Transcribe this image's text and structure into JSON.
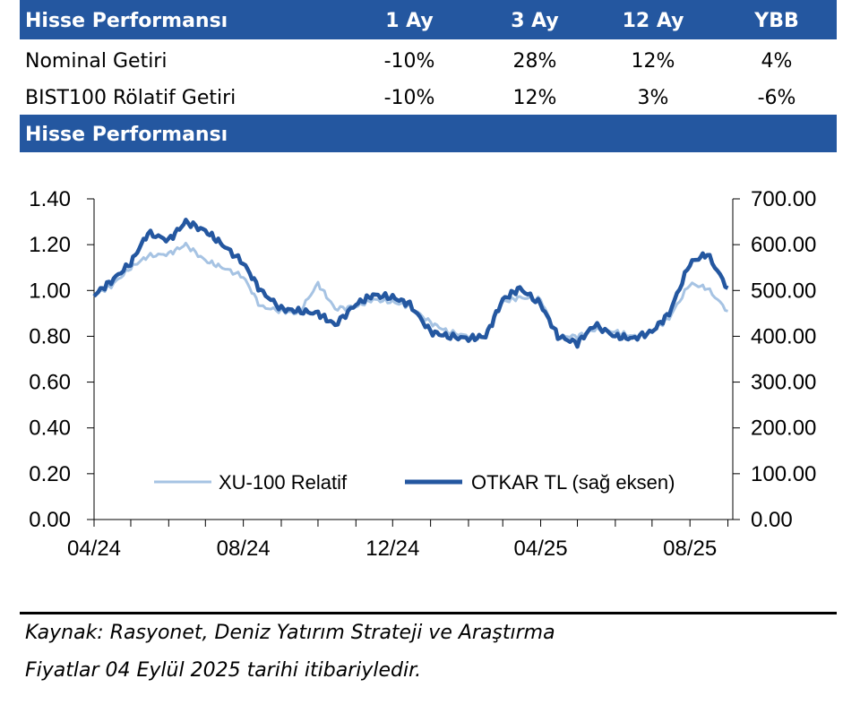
{
  "table": {
    "header": [
      "Hisse Performansı",
      "1 Ay",
      "3 Ay",
      "12 Ay",
      "YBB"
    ],
    "rows": [
      [
        "Nominal Getiri",
        "-10%",
        "28%",
        "12%",
        "4%"
      ],
      [
        "BIST100 Rölatif Getiri",
        "-10%",
        "12%",
        "3%",
        "-6%"
      ]
    ]
  },
  "section_title": "Hisse Performansı",
  "chart_data": {
    "type": "line",
    "left_axis": {
      "ylim": [
        0,
        1.4
      ],
      "ticks": [
        "0.00",
        "0.20",
        "0.40",
        "0.60",
        "0.80",
        "1.00",
        "1.20",
        "1.40"
      ]
    },
    "right_axis": {
      "ylim": [
        0,
        700
      ],
      "ticks": [
        "0.00",
        "100.00",
        "200.00",
        "300.00",
        "400.00",
        "500.00",
        "600.00",
        "700.00"
      ]
    },
    "x_ticks": [
      "04/24",
      "08/24",
      "12/24",
      "04/25",
      "08/25"
    ],
    "x_range": [
      "2024-04",
      "2025-09"
    ],
    "grid": false,
    "legend_position": "bottom-right",
    "series": [
      {
        "name": "XU-100 Relatif",
        "axis": "left",
        "color": "#a6c3e3",
        "x": [
          "2024-04-01",
          "2024-04-15",
          "2024-05-01",
          "2024-05-15",
          "2024-06-01",
          "2024-06-15",
          "2024-07-01",
          "2024-07-15",
          "2024-08-01",
          "2024-08-15",
          "2024-09-01",
          "2024-09-15",
          "2024-10-01",
          "2024-10-15",
          "2024-11-01",
          "2024-11-15",
          "2024-12-01",
          "2024-12-15",
          "2025-01-01",
          "2025-01-15",
          "2025-02-01",
          "2025-02-15",
          "2025-03-01",
          "2025-03-15",
          "2025-04-01",
          "2025-04-15",
          "2025-05-01",
          "2025-05-15",
          "2025-06-01",
          "2025-06-15",
          "2025-07-01",
          "2025-07-15",
          "2025-08-01",
          "2025-08-15",
          "2025-09-01"
        ],
        "values": [
          0.98,
          1.02,
          1.1,
          1.15,
          1.16,
          1.2,
          1.13,
          1.1,
          1.06,
          0.93,
          0.91,
          0.9,
          1.03,
          0.92,
          0.93,
          0.96,
          0.95,
          0.93,
          0.86,
          0.82,
          0.8,
          0.8,
          0.95,
          0.97,
          0.96,
          0.8,
          0.8,
          0.83,
          0.82,
          0.8,
          0.82,
          0.88,
          1.03,
          1.01,
          0.91
        ]
      },
      {
        "name": "OTKAR TL (sağ eksen)",
        "axis": "right",
        "color": "#2457a0",
        "x": [
          "2024-04-01",
          "2024-04-15",
          "2024-05-01",
          "2024-05-15",
          "2024-06-01",
          "2024-06-15",
          "2024-07-01",
          "2024-07-15",
          "2024-08-01",
          "2024-08-15",
          "2024-09-01",
          "2024-09-15",
          "2024-10-01",
          "2024-10-15",
          "2024-11-01",
          "2024-11-15",
          "2024-12-01",
          "2024-12-15",
          "2025-01-01",
          "2025-01-15",
          "2025-02-01",
          "2025-02-15",
          "2025-03-01",
          "2025-03-15",
          "2025-04-01",
          "2025-04-15",
          "2025-05-01",
          "2025-05-15",
          "2025-06-01",
          "2025-06-15",
          "2025-07-01",
          "2025-07-15",
          "2025-08-01",
          "2025-08-15",
          "2025-09-01"
        ],
        "values": [
          490,
          520,
          560,
          625,
          610,
          650,
          630,
          600,
          560,
          500,
          460,
          455,
          450,
          425,
          470,
          490,
          485,
          470,
          410,
          400,
          395,
          400,
          480,
          505,
          470,
          400,
          385,
          425,
          400,
          395,
          410,
          450,
          560,
          580,
          505
        ]
      }
    ]
  },
  "notes": {
    "source": "Kaynak: Rasyonet, Deniz Yatırım Strateji ve Araştırma",
    "date": "Fiyatlar 04 Eylül 2025 tarihi itibariyledir."
  }
}
